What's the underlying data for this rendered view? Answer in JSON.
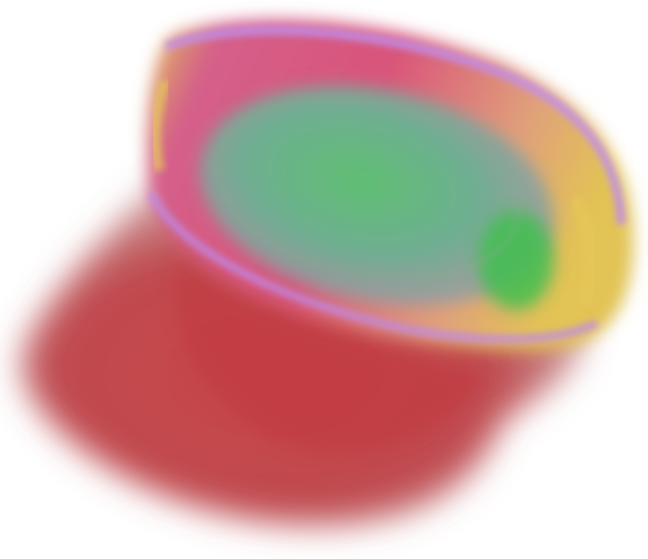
{
  "image": {
    "subject": "volume-rendered-vessel",
    "background_color": "#ffffff",
    "colors": {
      "body_red": "#c9454a",
      "body_dark_red": "#b33e3e",
      "rim_magenta": "#d45f8a",
      "rim_violet": "#b98ae6",
      "rim_yellow": "#e2c355",
      "inner_green": "#3fbf4f",
      "inner_teal": "#6fae9a"
    }
  }
}
